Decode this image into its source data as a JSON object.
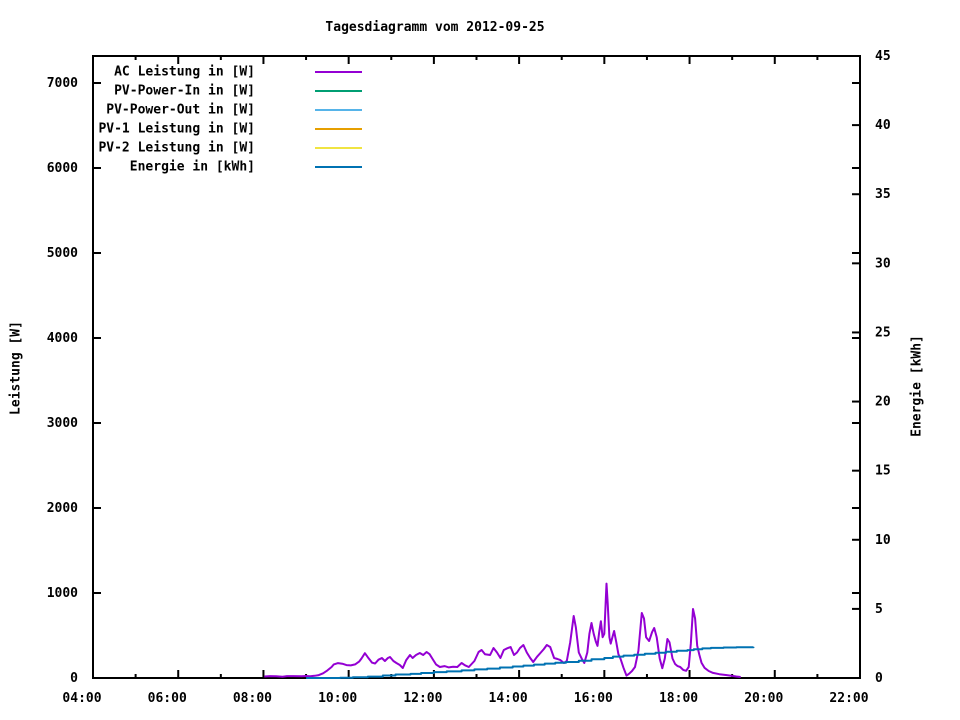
{
  "window": {
    "background": "#ffffff",
    "foreground": "#000000"
  },
  "chart_data": {
    "type": "line",
    "title": "Tagesdiagramm vom 2012-09-25",
    "legend_position": "top-left-inside",
    "grid": false,
    "x_axis": {
      "kind": "time-of-day",
      "range_hours": [
        4,
        22
      ],
      "major_ticks": [
        {
          "h": 4,
          "label": "04:00"
        },
        {
          "h": 6,
          "label": "06:00"
        },
        {
          "h": 8,
          "label": "08:00"
        },
        {
          "h": 10,
          "label": "10:00"
        },
        {
          "h": 12,
          "label": "12:00"
        },
        {
          "h": 14,
          "label": "14:00"
        },
        {
          "h": 16,
          "label": "16:00"
        },
        {
          "h": 18,
          "label": "18:00"
        },
        {
          "h": 20,
          "label": "20:00"
        },
        {
          "h": 22,
          "label": "22:00"
        }
      ],
      "minor_tick_hours": [
        5,
        7,
        9,
        11,
        13,
        15,
        17,
        19,
        21
      ]
    },
    "y_axis": {
      "label": "Leistung [W]",
      "range": [
        0,
        7320
      ],
      "ticks": [
        {
          "v": 0,
          "label": "0"
        },
        {
          "v": 1000,
          "label": "1000"
        },
        {
          "v": 2000,
          "label": "2000"
        },
        {
          "v": 3000,
          "label": "3000"
        },
        {
          "v": 4000,
          "label": "4000"
        },
        {
          "v": 5000,
          "label": "5000"
        },
        {
          "v": 6000,
          "label": "6000"
        },
        {
          "v": 7000,
          "label": "7000"
        }
      ]
    },
    "y2_axis": {
      "label": "Energie [kWh]",
      "range": [
        0,
        45
      ],
      "ticks": [
        {
          "v": 0,
          "label": "0"
        },
        {
          "v": 5,
          "label": "5"
        },
        {
          "v": 10,
          "label": "10"
        },
        {
          "v": 15,
          "label": "15"
        },
        {
          "v": 20,
          "label": "20"
        },
        {
          "v": 25,
          "label": "25"
        },
        {
          "v": 30,
          "label": "30"
        },
        {
          "v": 35,
          "label": "35"
        },
        {
          "v": 40,
          "label": "40"
        },
        {
          "v": 45,
          "label": "45"
        }
      ]
    },
    "series": [
      {
        "name": "AC Leistung in [W]",
        "color": "#9400D3",
        "axis": "y",
        "render": "line",
        "points": [
          [
            8.02,
            18
          ],
          [
            8.15,
            22
          ],
          [
            8.3,
            20
          ],
          [
            8.45,
            15
          ],
          [
            8.55,
            22
          ],
          [
            8.7,
            22
          ],
          [
            8.9,
            20
          ],
          [
            9.0,
            24
          ],
          [
            9.1,
            20
          ],
          [
            9.2,
            26
          ],
          [
            9.3,
            34
          ],
          [
            9.4,
            55
          ],
          [
            9.5,
            90
          ],
          [
            9.6,
            130
          ],
          [
            9.65,
            160
          ],
          [
            9.75,
            175
          ],
          [
            9.85,
            168
          ],
          [
            9.95,
            152
          ],
          [
            10.05,
            148
          ],
          [
            10.15,
            160
          ],
          [
            10.25,
            195
          ],
          [
            10.3,
            230
          ],
          [
            10.38,
            292
          ],
          [
            10.45,
            245
          ],
          [
            10.55,
            180
          ],
          [
            10.62,
            170
          ],
          [
            10.7,
            215
          ],
          [
            10.78,
            235
          ],
          [
            10.85,
            200
          ],
          [
            10.92,
            235
          ],
          [
            10.97,
            247
          ],
          [
            11.05,
            200
          ],
          [
            11.12,
            176
          ],
          [
            11.2,
            153
          ],
          [
            11.27,
            118
          ],
          [
            11.35,
            210
          ],
          [
            11.44,
            270
          ],
          [
            11.5,
            235
          ],
          [
            11.58,
            270
          ],
          [
            11.67,
            294
          ],
          [
            11.75,
            270
          ],
          [
            11.83,
            306
          ],
          [
            11.9,
            280
          ],
          [
            11.97,
            224
          ],
          [
            12.05,
            160
          ],
          [
            12.14,
            129
          ],
          [
            12.25,
            140
          ],
          [
            12.35,
            125
          ],
          [
            12.45,
            132
          ],
          [
            12.55,
            129
          ],
          [
            12.65,
            176
          ],
          [
            12.73,
            150
          ],
          [
            12.82,
            129
          ],
          [
            12.95,
            200
          ],
          [
            13.05,
            306
          ],
          [
            13.12,
            329
          ],
          [
            13.2,
            280
          ],
          [
            13.32,
            270
          ],
          [
            13.4,
            353
          ],
          [
            13.48,
            300
          ],
          [
            13.56,
            235
          ],
          [
            13.64,
            329
          ],
          [
            13.72,
            350
          ],
          [
            13.8,
            365
          ],
          [
            13.88,
            270
          ],
          [
            13.95,
            300
          ],
          [
            14.02,
            353
          ],
          [
            14.1,
            388
          ],
          [
            14.18,
            300
          ],
          [
            14.26,
            235
          ],
          [
            14.33,
            188
          ],
          [
            14.42,
            250
          ],
          [
            14.5,
            294
          ],
          [
            14.58,
            340
          ],
          [
            14.65,
            388
          ],
          [
            14.73,
            365
          ],
          [
            14.82,
            235
          ],
          [
            14.9,
            224
          ],
          [
            14.97,
            210
          ],
          [
            15.05,
            176
          ],
          [
            15.12,
            200
          ],
          [
            15.2,
            420
          ],
          [
            15.28,
            729
          ],
          [
            15.33,
            600
          ],
          [
            15.4,
            300
          ],
          [
            15.47,
            228
          ],
          [
            15.53,
            176
          ],
          [
            15.6,
            300
          ],
          [
            15.65,
            520
          ],
          [
            15.7,
            647
          ],
          [
            15.75,
            520
          ],
          [
            15.8,
            430
          ],
          [
            15.84,
            378
          ],
          [
            15.88,
            540
          ],
          [
            15.92,
            668
          ],
          [
            15.96,
            480
          ],
          [
            16.0,
            520
          ],
          [
            16.05,
            1110
          ],
          [
            16.08,
            880
          ],
          [
            16.12,
            480
          ],
          [
            16.15,
            405
          ],
          [
            16.19,
            480
          ],
          [
            16.23,
            553
          ],
          [
            16.28,
            420
          ],
          [
            16.33,
            280
          ],
          [
            16.38,
            227
          ],
          [
            16.45,
            120
          ],
          [
            16.52,
            28
          ],
          [
            16.58,
            50
          ],
          [
            16.65,
            82
          ],
          [
            16.72,
            130
          ],
          [
            16.8,
            320
          ],
          [
            16.88,
            765
          ],
          [
            16.93,
            700
          ],
          [
            16.98,
            480
          ],
          [
            17.05,
            435
          ],
          [
            17.12,
            540
          ],
          [
            17.17,
            588
          ],
          [
            17.23,
            480
          ],
          [
            17.3,
            230
          ],
          [
            17.36,
            115
          ],
          [
            17.42,
            230
          ],
          [
            17.48,
            459
          ],
          [
            17.53,
            420
          ],
          [
            17.6,
            230
          ],
          [
            17.66,
            165
          ],
          [
            17.72,
            140
          ],
          [
            17.78,
            129
          ],
          [
            17.85,
            95
          ],
          [
            17.92,
            85
          ],
          [
            17.98,
            130
          ],
          [
            18.03,
            400
          ],
          [
            18.08,
            812
          ],
          [
            18.13,
            700
          ],
          [
            18.18,
            380
          ],
          [
            18.23,
            270
          ],
          [
            18.28,
            180
          ],
          [
            18.35,
            120
          ],
          [
            18.45,
            82
          ],
          [
            18.55,
            60
          ],
          [
            18.7,
            45
          ],
          [
            18.85,
            35
          ],
          [
            19.0,
            25
          ],
          [
            19.1,
            18
          ],
          [
            19.2,
            12
          ]
        ]
      },
      {
        "name": "PV-Power-In in [W]",
        "color": "#009E73",
        "axis": "y",
        "render": "line",
        "points": []
      },
      {
        "name": "PV-Power-Out in [W]",
        "color": "#56B4E9",
        "axis": "y",
        "render": "line",
        "points": []
      },
      {
        "name": "PV-1 Leistung in [W]",
        "color": "#E69F00",
        "axis": "y",
        "render": "line",
        "points": []
      },
      {
        "name": "PV-2 Leistung in [W]",
        "color": "#F0E442",
        "axis": "y",
        "render": "line",
        "points": []
      },
      {
        "name": "Energie in [kWh]",
        "color": "#0072B2",
        "axis": "y2",
        "render": "steps",
        "points": [
          [
            9.0,
            0
          ],
          [
            9.8,
            0.02
          ],
          [
            10.1,
            0.05
          ],
          [
            10.45,
            0.1
          ],
          [
            10.8,
            0.18
          ],
          [
            11.1,
            0.25
          ],
          [
            11.45,
            0.3
          ],
          [
            11.7,
            0.36
          ],
          [
            12.0,
            0.43
          ],
          [
            12.3,
            0.48
          ],
          [
            12.65,
            0.55
          ],
          [
            12.95,
            0.62
          ],
          [
            13.25,
            0.68
          ],
          [
            13.55,
            0.76
          ],
          [
            13.85,
            0.83
          ],
          [
            14.1,
            0.9
          ],
          [
            14.35,
            0.97
          ],
          [
            14.6,
            1.04
          ],
          [
            14.85,
            1.1
          ],
          [
            15.1,
            1.16
          ],
          [
            15.4,
            1.25
          ],
          [
            15.7,
            1.35
          ],
          [
            16.0,
            1.45
          ],
          [
            16.2,
            1.55
          ],
          [
            16.45,
            1.62
          ],
          [
            16.7,
            1.68
          ],
          [
            16.95,
            1.76
          ],
          [
            17.2,
            1.82
          ],
          [
            17.45,
            1.9
          ],
          [
            17.7,
            1.97
          ],
          [
            17.95,
            2.02
          ],
          [
            18.1,
            2.08
          ],
          [
            18.3,
            2.14
          ],
          [
            18.5,
            2.18
          ],
          [
            18.8,
            2.21
          ],
          [
            19.1,
            2.23
          ],
          [
            19.5,
            2.25
          ]
        ]
      }
    ]
  }
}
